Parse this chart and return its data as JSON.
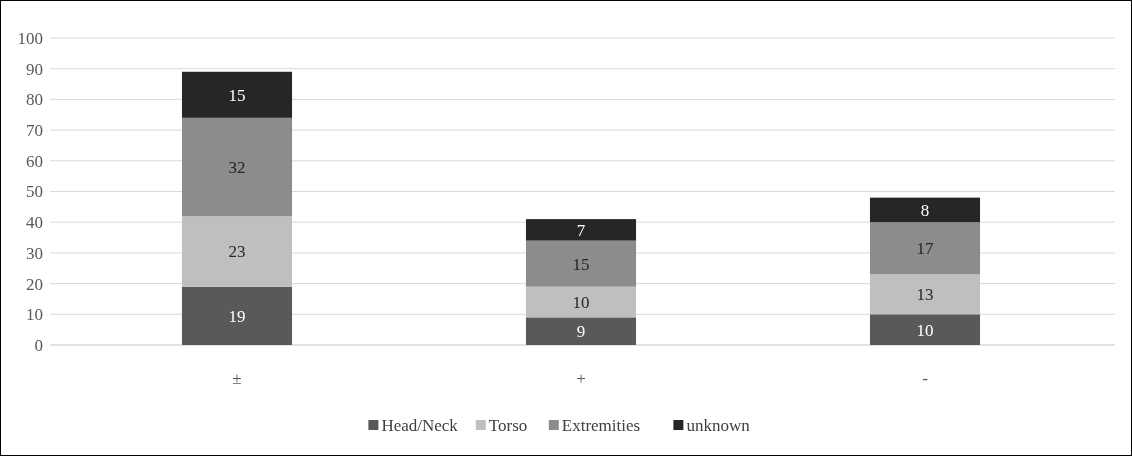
{
  "chart_data": {
    "type": "bar",
    "stacked": true,
    "categories": [
      "±",
      "+",
      "-"
    ],
    "series": [
      {
        "name": "Head/Neck",
        "color": "#595959",
        "values": [
          19,
          9,
          10
        ]
      },
      {
        "name": "Torso",
        "color": "#bfbfbf",
        "values": [
          23,
          10,
          13
        ]
      },
      {
        "name": "Extremities",
        "color": "#8c8c8c",
        "values": [
          32,
          15,
          17
        ]
      },
      {
        "name": "unknown",
        "color": "#262626",
        "values": [
          15,
          7,
          8
        ]
      }
    ],
    "ylim": [
      0,
      100
    ],
    "yticks": [
      0,
      10,
      20,
      30,
      40,
      50,
      60,
      70,
      80,
      90,
      100
    ],
    "grid": "y",
    "legend": "bottom",
    "data_labels": true
  }
}
